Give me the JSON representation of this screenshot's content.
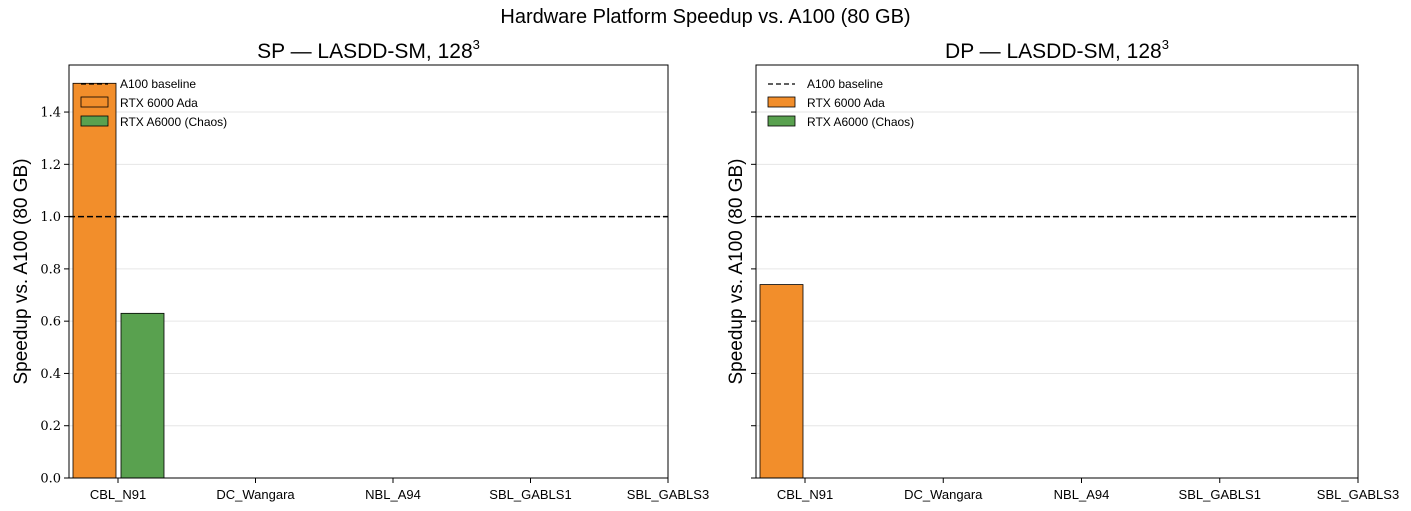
{
  "figure": {
    "title": "Hardware Platform Speedup vs. A100 (80 GB)"
  },
  "colors": {
    "rtx6000": "#f28e2b",
    "a6000": "#59a14f",
    "baseline": "#000000",
    "grid": "#e6e6e6"
  },
  "chart_data": [
    {
      "type": "bar",
      "title": "SP — LASDD-SM, 128",
      "title_superscript": "3",
      "xlabel": "",
      "ylabel": "Speedup vs. A100 (80 GB)",
      "ylim": [
        0,
        1.58
      ],
      "yticks": [
        "0.0",
        "0.2",
        "0.4",
        "0.6",
        "0.8",
        "1.0",
        "1.2",
        "1.4"
      ],
      "categories": [
        "CBL_N91",
        "DC_Wangara",
        "NBL_A94",
        "SBL_GABLS1",
        "SBL_GABLS3"
      ],
      "baseline": {
        "name": "A100 baseline",
        "value": 1.0
      },
      "series": [
        {
          "name": "RTX 6000 Ada",
          "color": "#f28e2b",
          "values": [
            1.51,
            null,
            null,
            null,
            null
          ]
        },
        {
          "name": "RTX A6000 (Chaos)",
          "color": "#59a14f",
          "values": [
            0.63,
            null,
            null,
            null,
            null
          ]
        }
      ],
      "legend": {
        "placement": "top-left",
        "entries": [
          "A100 baseline",
          "RTX 6000 Ada",
          "RTX A6000 (Chaos)"
        ]
      },
      "grid": "y",
      "show_ytick_labels": true
    },
    {
      "type": "bar",
      "title": "DP — LASDD-SM, 128",
      "title_superscript": "3",
      "xlabel": "",
      "ylabel": "Speedup vs. A100 (80 GB)",
      "ylim": [
        0,
        1.58
      ],
      "yticks": [
        "0.0",
        "0.2",
        "0.4",
        "0.6",
        "0.8",
        "1.0",
        "1.2",
        "1.4"
      ],
      "categories": [
        "CBL_N91",
        "DC_Wangara",
        "NBL_A94",
        "SBL_GABLS1",
        "SBL_GABLS3"
      ],
      "baseline": {
        "name": "A100 baseline",
        "value": 1.0
      },
      "series": [
        {
          "name": "RTX 6000 Ada",
          "color": "#f28e2b",
          "values": [
            0.74,
            null,
            null,
            null,
            null
          ]
        },
        {
          "name": "RTX A6000 (Chaos)",
          "color": "#59a14f",
          "values": [
            null,
            null,
            null,
            null,
            null
          ]
        }
      ],
      "legend": {
        "placement": "top-left",
        "entries": [
          "A100 baseline",
          "RTX 6000 Ada",
          "RTX A6000 (Chaos)"
        ]
      },
      "grid": "y",
      "show_ytick_labels": false
    }
  ]
}
